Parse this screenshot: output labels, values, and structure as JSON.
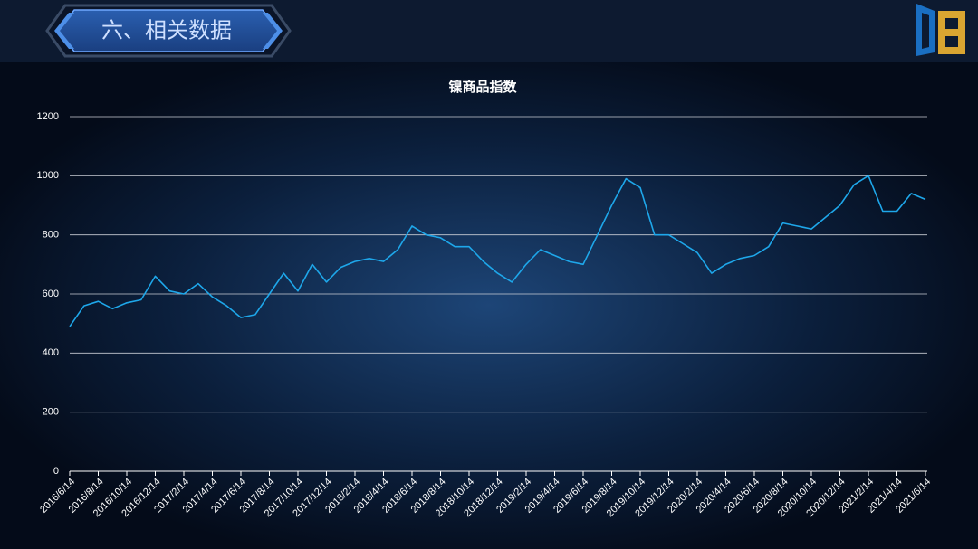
{
  "header": {
    "title": "六、相关数据"
  },
  "chart_data": {
    "type": "line",
    "title": "镍商品指数",
    "categories": [
      "2016/6/14",
      null,
      "2016/8/14",
      null,
      "2016/10/14",
      null,
      "2016/12/14",
      null,
      "2017/2/14",
      null,
      "2017/4/14",
      null,
      "2017/6/14",
      null,
      "2017/8/14",
      null,
      "2017/10/14",
      null,
      "2017/12/14",
      null,
      "2018/2/14",
      null,
      "2018/4/14",
      null,
      "2018/6/14",
      null,
      "2018/8/14",
      null,
      "2018/10/14",
      null,
      "2018/12/14",
      null,
      "2019/2/14",
      null,
      "2019/4/14",
      null,
      "2019/6/14",
      null,
      "2019/8/14",
      null,
      "2019/10/14",
      null,
      "2019/12/14",
      null,
      "2020/2/14",
      null,
      "2020/4/14",
      null,
      "2020/6/14",
      null,
      "2020/8/14",
      null,
      "2020/10/14",
      null,
      "2020/12/14",
      null,
      "2021/2/14",
      null,
      "2021/4/14",
      null,
      "2021/6/14"
    ],
    "values": [
      490,
      560,
      575,
      550,
      570,
      580,
      660,
      610,
      600,
      635,
      590,
      560,
      520,
      530,
      600,
      670,
      610,
      700,
      640,
      690,
      710,
      720,
      710,
      750,
      830,
      800,
      790,
      760,
      760,
      710,
      670,
      640,
      700,
      750,
      730,
      710,
      700,
      800,
      900,
      990,
      960,
      800,
      800,
      770,
      740,
      670,
      700,
      720,
      730,
      760,
      840,
      830,
      820,
      860,
      900,
      970,
      1000,
      880,
      880,
      940,
      920
    ],
    "color": "#1ea7ea",
    "ylim": [
      0,
      1200
    ],
    "yticks": [
      0,
      200,
      400,
      600,
      800,
      1000,
      1200
    ],
    "grid": true
  }
}
